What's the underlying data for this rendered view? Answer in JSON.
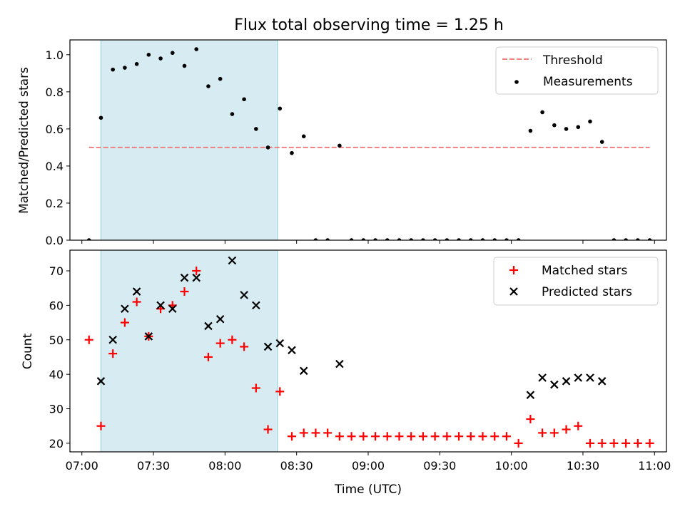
{
  "chart_data": {
    "title": "Flux total observing time = 1.25 h",
    "xlabel": "Time (UTC)",
    "x_ticks": [
      "07:00",
      "07:30",
      "08:00",
      "08:30",
      "09:00",
      "09:30",
      "10:00",
      "10:30",
      "11:00"
    ],
    "xlim": [
      "06:55",
      "11:05"
    ],
    "shaded_span": [
      "07:08",
      "08:22"
    ],
    "shade_color": "#add8e6",
    "x": [
      "07:03",
      "07:08",
      "07:13",
      "07:18",
      "07:23",
      "07:28",
      "07:33",
      "07:38",
      "07:43",
      "07:48",
      "07:53",
      "07:58",
      "08:03",
      "08:08",
      "08:13",
      "08:18",
      "08:23",
      "08:28",
      "08:33",
      "08:38",
      "08:43",
      "08:48",
      "08:53",
      "08:58",
      "09:03",
      "09:08",
      "09:13",
      "09:18",
      "09:23",
      "09:28",
      "09:33",
      "09:38",
      "09:43",
      "09:48",
      "09:53",
      "09:58",
      "10:03",
      "10:08",
      "10:13",
      "10:18",
      "10:23",
      "10:28",
      "10:33",
      "10:38",
      "10:43",
      "10:48",
      "10:53",
      "10:58"
    ],
    "top": {
      "type": "scatter",
      "ylabel": "Matched/Predicted stars",
      "ylim": [
        0,
        1.08
      ],
      "y_ticks": [
        "0.0",
        "0.2",
        "0.4",
        "0.6",
        "0.8",
        "1.0"
      ],
      "threshold": {
        "name": "Threshold",
        "value": 0.5,
        "color": "#f08080",
        "xrange": [
          "07:03",
          "10:58"
        ]
      },
      "measurements": {
        "name": "Measurements",
        "color": "#000000",
        "values": [
          0.0,
          0.66,
          0.92,
          0.93,
          0.95,
          1.0,
          0.98,
          1.01,
          0.94,
          1.03,
          0.83,
          0.87,
          0.68,
          0.76,
          0.6,
          0.5,
          0.71,
          0.47,
          0.56,
          0.0,
          0.0,
          0.51,
          0.0,
          0.0,
          0.0,
          0.0,
          0.0,
          0.0,
          0.0,
          0.0,
          0.0,
          0.0,
          0.0,
          0.0,
          0.0,
          0.0,
          0.0,
          0.59,
          0.69,
          0.62,
          0.6,
          0.61,
          0.64,
          0.53,
          0.0,
          0.0,
          0.0,
          0.0
        ]
      },
      "legend_position": "top-right"
    },
    "bottom": {
      "type": "scatter",
      "ylabel": "Count",
      "ylim": [
        17.5,
        76
      ],
      "y_ticks": [
        "20",
        "30",
        "40",
        "50",
        "60",
        "70"
      ],
      "series": [
        {
          "name": "Matched stars",
          "color": "#ff0000",
          "values": [
            50,
            25,
            46,
            55,
            61,
            51,
            59,
            60,
            64,
            70,
            45,
            49,
            50,
            48,
            36,
            24,
            35,
            22,
            23,
            23,
            23,
            22,
            22,
            22,
            22,
            22,
            22,
            22,
            22,
            22,
            22,
            22,
            22,
            22,
            22,
            22,
            20,
            27,
            23,
            23,
            24,
            25,
            20,
            20,
            20,
            20,
            20,
            20
          ]
        },
        {
          "name": "Predicted stars",
          "color": "#000000",
          "values": [
            null,
            38,
            50,
            59,
            64,
            51,
            60,
            59,
            68,
            68,
            54,
            56,
            73,
            63,
            60,
            48,
            49,
            47,
            41,
            null,
            null,
            43,
            null,
            null,
            null,
            null,
            null,
            null,
            null,
            null,
            null,
            null,
            null,
            null,
            null,
            null,
            null,
            34,
            39,
            37,
            38,
            39,
            39,
            38,
            null,
            null,
            null,
            null
          ]
        }
      ],
      "legend_position": "top-right"
    }
  }
}
